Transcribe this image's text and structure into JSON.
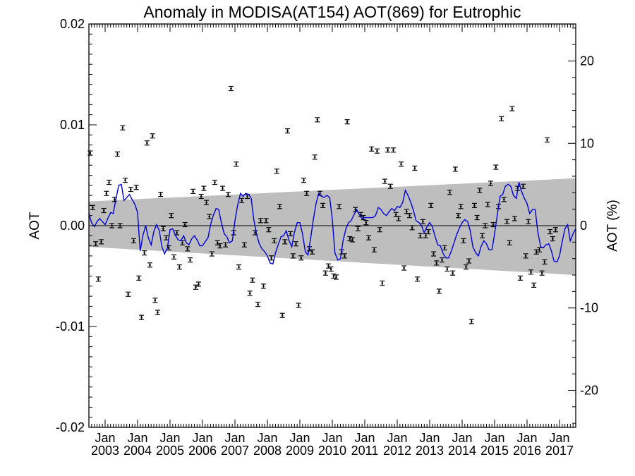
{
  "chart_data": {
    "type": "scatter",
    "title": "Anomaly in MODISA(AT154) AOT(869) for Eutrophic",
    "ylabel": "AOT",
    "y2label": "AOT (%)",
    "xlim": [
      2002.5,
      2017.5
    ],
    "ylim": [
      -0.02,
      0.02
    ],
    "y2lim": [
      -24.5,
      24.5
    ],
    "x_ticks": [
      {
        "label": "Jan",
        "year": "2003",
        "x": 2003
      },
      {
        "label": "Jan",
        "year": "2004",
        "x": 2004
      },
      {
        "label": "Jan",
        "year": "2005",
        "x": 2005
      },
      {
        "label": "Jan",
        "year": "2006",
        "x": 2006
      },
      {
        "label": "Jan",
        "year": "2007",
        "x": 2007
      },
      {
        "label": "Jan",
        "year": "2008",
        "x": 2008
      },
      {
        "label": "Jan",
        "year": "2009",
        "x": 2009
      },
      {
        "label": "Jan",
        "year": "2010",
        "x": 2010
      },
      {
        "label": "Jan",
        "year": "2011",
        "x": 2011
      },
      {
        "label": "Jan",
        "year": "2012",
        "x": 2012
      },
      {
        "label": "Jan",
        "year": "2013",
        "x": 2013
      },
      {
        "label": "Jan",
        "year": "2014",
        "x": 2014
      },
      {
        "label": "Jan",
        "year": "2015",
        "x": 2015
      },
      {
        "label": "Jan",
        "year": "2016",
        "x": 2016
      },
      {
        "label": "Jan",
        "year": "2017",
        "x": 2017
      }
    ],
    "y_ticks": [
      {
        "value": 0.02,
        "label": "0.02"
      },
      {
        "value": 0.01,
        "label": "0.01"
      },
      {
        "value": 0.0,
        "label": "0.00"
      },
      {
        "value": -0.01,
        "label": "-0.01"
      },
      {
        "value": -0.02,
        "label": "-0.02"
      }
    ],
    "y2_ticks": [
      {
        "value": 20,
        "label": "20"
      },
      {
        "value": 10,
        "label": "10"
      },
      {
        "value": 0,
        "label": "0"
      },
      {
        "value": -10,
        "label": "-10"
      },
      {
        "value": -20,
        "label": "-20"
      }
    ],
    "colors": {
      "points": "#000000",
      "smoothed": "#0000dd",
      "band": "#bebebe",
      "zero_line": "#000000"
    },
    "uncertainty_band": {
      "x": [
        2002.5,
        2017.5
      ],
      "upper": [
        0.0024,
        0.0047
      ],
      "lower": [
        -0.0021,
        -0.0049
      ]
    },
    "monthly_anomaly": [
      {
        "x": 2002.54,
        "y": 0.0072
      },
      {
        "x": 2002.62,
        "y": 0.0018
      },
      {
        "x": 2002.71,
        "y": -0.0018
      },
      {
        "x": 2002.79,
        "y": -0.0053
      },
      {
        "x": 2002.88,
        "y": -0.0016
      },
      {
        "x": 2002.96,
        "y": 0.0015
      },
      {
        "x": 2003.04,
        "y": 0.0032
      },
      {
        "x": 2003.12,
        "y": 0.0043
      },
      {
        "x": 2003.21,
        "y": 0.0
      },
      {
        "x": 2003.29,
        "y": 0.0026
      },
      {
        "x": 2003.38,
        "y": 0.0071
      },
      {
        "x": 2003.46,
        "y": 0.0
      },
      {
        "x": 2003.54,
        "y": 0.0097
      },
      {
        "x": 2003.62,
        "y": 0.0045
      },
      {
        "x": 2003.71,
        "y": -0.0068
      },
      {
        "x": 2003.79,
        "y": 0.0036
      },
      {
        "x": 2003.88,
        "y": -0.0015
      },
      {
        "x": 2003.96,
        "y": 0.0038
      },
      {
        "x": 2004.04,
        "y": -0.0052
      },
      {
        "x": 2004.12,
        "y": -0.0091
      },
      {
        "x": 2004.21,
        "y": -0.0027
      },
      {
        "x": 2004.29,
        "y": 0.0082
      },
      {
        "x": 2004.38,
        "y": -0.0039
      },
      {
        "x": 2004.46,
        "y": 0.0089
      },
      {
        "x": 2004.54,
        "y": -0.0074
      },
      {
        "x": 2004.62,
        "y": -0.0086
      },
      {
        "x": 2004.71,
        "y": 0.0031
      },
      {
        "x": 2004.79,
        "y": -0.0003
      },
      {
        "x": 2004.88,
        "y": -0.0012
      },
      {
        "x": 2004.96,
        "y": -0.0022
      },
      {
        "x": 2005.04,
        "y": 0.001
      },
      {
        "x": 2005.12,
        "y": -0.0031
      },
      {
        "x": 2005.21,
        "y": -0.0007
      },
      {
        "x": 2005.29,
        "y": -0.0041
      },
      {
        "x": 2005.38,
        "y": -0.0017
      },
      {
        "x": 2005.46,
        "y": 0.0001
      },
      {
        "x": 2005.54,
        "y": -0.0023
      },
      {
        "x": 2005.62,
        "y": -0.0034
      },
      {
        "x": 2005.71,
        "y": 0.0034
      },
      {
        "x": 2005.79,
        "y": -0.0061
      },
      {
        "x": 2005.88,
        "y": -0.0058
      },
      {
        "x": 2005.96,
        "y": 0.0029
      },
      {
        "x": 2006.04,
        "y": 0.0037
      },
      {
        "x": 2006.12,
        "y": 0.0023
      },
      {
        "x": 2006.21,
        "y": 0.0009
      },
      {
        "x": 2006.29,
        "y": -0.0028
      },
      {
        "x": 2006.38,
        "y": 0.0043
      },
      {
        "x": 2006.46,
        "y": -0.0017
      },
      {
        "x": 2006.54,
        "y": -0.002
      },
      {
        "x": 2006.62,
        "y": 0.0037
      },
      {
        "x": 2006.71,
        "y": -0.0019
      },
      {
        "x": 2006.79,
        "y": 0.0031
      },
      {
        "x": 2006.88,
        "y": 0.0136
      },
      {
        "x": 2006.96,
        "y": -0.0007
      },
      {
        "x": 2007.04,
        "y": 0.0061
      },
      {
        "x": 2007.12,
        "y": -0.0041
      },
      {
        "x": 2007.21,
        "y": 0.0025
      },
      {
        "x": 2007.29,
        "y": -0.0019
      },
      {
        "x": 2007.38,
        "y": 0.0029
      },
      {
        "x": 2007.46,
        "y": -0.0067
      },
      {
        "x": 2007.54,
        "y": -0.0054
      },
      {
        "x": 2007.62,
        "y": -0.0007
      },
      {
        "x": 2007.71,
        "y": -0.0078
      },
      {
        "x": 2007.79,
        "y": 0.0005
      },
      {
        "x": 2007.88,
        "y": -0.006
      },
      {
        "x": 2007.96,
        "y": 0.0005
      },
      {
        "x": 2008.04,
        "y": -0.0004
      },
      {
        "x": 2008.12,
        "y": -0.0032
      },
      {
        "x": 2008.21,
        "y": -0.0015
      },
      {
        "x": 2008.29,
        "y": 0.0054
      },
      {
        "x": 2008.38,
        "y": 0.0019
      },
      {
        "x": 2008.46,
        "y": -0.0089
      },
      {
        "x": 2008.54,
        "y": -0.0016
      },
      {
        "x": 2008.62,
        "y": 0.0094
      },
      {
        "x": 2008.71,
        "y": -0.0008
      },
      {
        "x": 2008.79,
        "y": -0.003
      },
      {
        "x": 2008.88,
        "y": -0.0018
      },
      {
        "x": 2008.96,
        "y": -0.0079
      },
      {
        "x": 2009.04,
        "y": -0.0032
      },
      {
        "x": 2009.12,
        "y": 0.0045
      },
      {
        "x": 2009.21,
        "y": 0.0032
      },
      {
        "x": 2009.29,
        "y": -0.0023
      },
      {
        "x": 2009.38,
        "y": -0.0026
      },
      {
        "x": 2009.46,
        "y": 0.0068
      },
      {
        "x": 2009.54,
        "y": 0.0105
      },
      {
        "x": 2009.62,
        "y": 0.0032
      },
      {
        "x": 2009.71,
        "y": 0.002
      },
      {
        "x": 2009.79,
        "y": -0.0047
      },
      {
        "x": 2009.88,
        "y": -0.004
      },
      {
        "x": 2009.96,
        "y": -0.0043
      },
      {
        "x": 2010.04,
        "y": -0.005
      },
      {
        "x": 2010.12,
        "y": -0.0051
      },
      {
        "x": 2010.21,
        "y": 0.0019
      },
      {
        "x": 2010.29,
        "y": -0.0026
      },
      {
        "x": 2010.38,
        "y": -0.003
      },
      {
        "x": 2010.46,
        "y": 0.0103
      },
      {
        "x": 2010.54,
        "y": -0.0013
      },
      {
        "x": 2010.62,
        "y": -0.0014
      },
      {
        "x": 2010.71,
        "y": 0.0016
      },
      {
        "x": 2010.79,
        "y": -0.0003
      },
      {
        "x": 2010.88,
        "y": 0.0011
      },
      {
        "x": 2010.96,
        "y": 0.0008
      },
      {
        "x": 2011.04,
        "y": 0.0003
      },
      {
        "x": 2011.12,
        "y": -0.0012
      },
      {
        "x": 2011.21,
        "y": 0.0076
      },
      {
        "x": 2011.29,
        "y": -0.0024
      },
      {
        "x": 2011.38,
        "y": 0.0074
      },
      {
        "x": 2011.46,
        "y": -0.0004
      },
      {
        "x": 2011.54,
        "y": -0.0057
      },
      {
        "x": 2011.62,
        "y": 0.0044
      },
      {
        "x": 2011.71,
        "y": 0.0075
      },
      {
        "x": 2011.79,
        "y": 0.0039
      },
      {
        "x": 2011.88,
        "y": 0.0075
      },
      {
        "x": 2011.96,
        "y": 0.0011
      },
      {
        "x": 2012.04,
        "y": 0.0007
      },
      {
        "x": 2012.12,
        "y": 0.0061
      },
      {
        "x": 2012.21,
        "y": -0.0042
      },
      {
        "x": 2012.29,
        "y": 0.0014
      },
      {
        "x": 2012.38,
        "y": 0.001
      },
      {
        "x": 2012.46,
        "y": -0.0002
      },
      {
        "x": 2012.54,
        "y": 0.0057
      },
      {
        "x": 2012.62,
        "y": -0.0053
      },
      {
        "x": 2012.71,
        "y": -0.001
      },
      {
        "x": 2012.79,
        "y": 0.0004
      },
      {
        "x": 2012.88,
        "y": -0.001
      },
      {
        "x": 2012.96,
        "y": -0.0006
      },
      {
        "x": 2013.04,
        "y": 0.002
      },
      {
        "x": 2013.12,
        "y": -0.0028
      },
      {
        "x": 2013.21,
        "y": -0.0037
      },
      {
        "x": 2013.29,
        "y": -0.0065
      },
      {
        "x": 2013.38,
        "y": -0.0034
      },
      {
        "x": 2013.46,
        "y": -0.0022
      },
      {
        "x": 2013.54,
        "y": -0.0043
      },
      {
        "x": 2013.62,
        "y": 0.0033
      },
      {
        "x": 2013.71,
        "y": -0.0047
      },
      {
        "x": 2013.79,
        "y": 0.0056
      },
      {
        "x": 2013.88,
        "y": 0.001
      },
      {
        "x": 2013.96,
        "y": 0.0019
      },
      {
        "x": 2014.04,
        "y": -0.0015
      },
      {
        "x": 2014.12,
        "y": -0.0041
      },
      {
        "x": 2014.21,
        "y": -0.0035
      },
      {
        "x": 2014.29,
        "y": -0.0095
      },
      {
        "x": 2014.38,
        "y": 0.002
      },
      {
        "x": 2014.46,
        "y": 0.0008
      },
      {
        "x": 2014.54,
        "y": 0.0035
      },
      {
        "x": 2014.62,
        "y": -0.001
      },
      {
        "x": 2014.71,
        "y": 0.0
      },
      {
        "x": 2014.79,
        "y": 0.0021
      },
      {
        "x": 2014.88,
        "y": 0.0042
      },
      {
        "x": 2014.96,
        "y": 0.0001
      },
      {
        "x": 2015.04,
        "y": 0.0058
      },
      {
        "x": 2015.12,
        "y": 0.0019
      },
      {
        "x": 2015.21,
        "y": 0.0106
      },
      {
        "x": 2015.29,
        "y": 0.0026
      },
      {
        "x": 2015.38,
        "y": 0.0004
      },
      {
        "x": 2015.46,
        "y": -0.0017
      },
      {
        "x": 2015.54,
        "y": 0.0116
      },
      {
        "x": 2015.62,
        "y": 0.0007
      },
      {
        "x": 2015.71,
        "y": 0.0037
      },
      {
        "x": 2015.79,
        "y": -0.0052
      },
      {
        "x": 2015.88,
        "y": 0.0039
      },
      {
        "x": 2015.96,
        "y": -0.003
      },
      {
        "x": 2016.04,
        "y": 0.0004
      },
      {
        "x": 2016.12,
        "y": -0.0046
      },
      {
        "x": 2016.21,
        "y": -0.0059
      },
      {
        "x": 2016.29,
        "y": -0.0026
      },
      {
        "x": 2016.38,
        "y": -0.0024
      },
      {
        "x": 2016.46,
        "y": -0.0047
      },
      {
        "x": 2016.54,
        "y": -0.0036
      },
      {
        "x": 2016.62,
        "y": 0.0085
      },
      {
        "x": 2016.71,
        "y": -0.0006
      },
      {
        "x": 2016.79,
        "y": -0.0013
      },
      {
        "x": 2016.88,
        "y": -0.0004
      }
    ],
    "smoothed_anomaly": {
      "x": [
        2002.5,
        2002.58,
        2002.67,
        2002.75,
        2002.83,
        2002.92,
        2003.0,
        2003.08,
        2003.17,
        2003.25,
        2003.33,
        2003.42,
        2003.5,
        2003.58,
        2003.67,
        2003.75,
        2003.83,
        2003.92,
        2004.0,
        2004.08,
        2004.17,
        2004.25,
        2004.33,
        2004.42,
        2004.5,
        2004.58,
        2004.67,
        2004.75,
        2004.83,
        2004.92,
        2005.0,
        2005.08,
        2005.17,
        2005.25,
        2005.33,
        2005.42,
        2005.5,
        2005.58,
        2005.67,
        2005.75,
        2005.83,
        2005.92,
        2006.0,
        2006.08,
        2006.17,
        2006.25,
        2006.33,
        2006.42,
        2006.5,
        2006.58,
        2006.67,
        2006.75,
        2006.83,
        2006.92,
        2007.0,
        2007.08,
        2007.17,
        2007.25,
        2007.33,
        2007.42,
        2007.5,
        2007.58,
        2007.67,
        2007.75,
        2007.83,
        2007.92,
        2008.0,
        2008.08,
        2008.17,
        2008.25,
        2008.33,
        2008.42,
        2008.5,
        2008.58,
        2008.67,
        2008.75,
        2008.83,
        2008.92,
        2009.0,
        2009.08,
        2009.17,
        2009.25,
        2009.33,
        2009.42,
        2009.5,
        2009.58,
        2009.67,
        2009.75,
        2009.83,
        2009.92,
        2010.0,
        2010.08,
        2010.17,
        2010.25,
        2010.33,
        2010.42,
        2010.5,
        2010.58,
        2010.67,
        2010.75,
        2010.83,
        2010.92,
        2011.0,
        2011.08,
        2011.17,
        2011.25,
        2011.33,
        2011.42,
        2011.5,
        2011.58,
        2011.67,
        2011.75,
        2011.83,
        2011.92,
        2012.0,
        2012.08,
        2012.17,
        2012.25,
        2012.33,
        2012.42,
        2012.5,
        2012.58,
        2012.67,
        2012.75,
        2012.83,
        2012.92,
        2013.0,
        2013.08,
        2013.17,
        2013.25,
        2013.33,
        2013.42,
        2013.5,
        2013.58,
        2013.67,
        2013.75,
        2013.83,
        2013.92,
        2014.0,
        2014.08,
        2014.17,
        2014.25,
        2014.33,
        2014.42,
        2014.5,
        2014.58,
        2014.67,
        2014.75,
        2014.83,
        2014.92,
        2015.0,
        2015.08,
        2015.17,
        2015.25,
        2015.33,
        2015.42,
        2015.5,
        2015.58,
        2015.67,
        2015.75,
        2015.83,
        2015.92,
        2016.0,
        2016.08,
        2016.17,
        2016.25,
        2016.33,
        2016.42,
        2016.5,
        2016.58,
        2016.67,
        2016.75,
        2016.83,
        2016.92,
        2017.0,
        2017.08,
        2017.17,
        2017.25,
        2017.33,
        2017.42,
        2017.5
      ],
      "y": [
        0.0012,
        0.0003,
        -0.0001,
        0.0004,
        0.0007,
        0.0004,
        0.0001,
        0.0007,
        0.0013,
        0.0012,
        0.0026,
        0.004,
        0.0041,
        0.0025,
        0.0028,
        0.0031,
        0.0026,
        0.0021,
        0.0013,
        -0.0025,
        -0.0009,
        0.0,
        -0.0012,
        -0.0019,
        -0.0006,
        0.0001,
        -0.0005,
        -0.0021,
        -0.0028,
        -0.0022,
        -0.0004,
        -0.0003,
        -0.001,
        -0.0014,
        -0.0015,
        -0.001,
        -0.0017,
        -0.0019,
        -0.0013,
        -0.001,
        -0.0014,
        -0.002,
        -0.002,
        -0.0016,
        -0.0012,
        0.0001,
        0.001,
        0.0017,
        0.0016,
        0.0003,
        -0.0008,
        -0.0011,
        -0.0017,
        -0.0015,
        0.0005,
        0.002,
        0.0032,
        0.0029,
        0.0032,
        0.0031,
        0.0027,
        0.0006,
        -0.0009,
        -0.0018,
        -0.0023,
        -0.0026,
        -0.003,
        -0.0037,
        -0.0038,
        -0.0027,
        -0.0019,
        -0.0011,
        -0.001,
        -0.0005,
        -0.0015,
        -0.0021,
        -0.0007,
        0.0003,
        0.0003,
        -0.0008,
        -0.0026,
        -0.0029,
        -0.0013,
        0.0007,
        0.0022,
        0.0032,
        0.0029,
        0.0028,
        0.003,
        0.0028,
        0.0006,
        -0.0027,
        -0.0034,
        -0.0033,
        -0.0015,
        -0.0003,
        0.0003,
        0.0005,
        0.0011,
        0.0016,
        0.0011,
        0.0007,
        0.0008,
        0.0008,
        0.0008,
        0.0008,
        0.001,
        0.0018,
        0.0016,
        0.0012,
        0.001,
        0.0014,
        0.0017,
        0.0015,
        0.0019,
        0.0018,
        0.0023,
        0.0035,
        0.003,
        0.0023,
        0.0015,
        0.0005,
        0.0003,
        0.0,
        -0.0007,
        -0.0001,
        0.0003,
        -0.0001,
        -0.0011,
        -0.0019,
        -0.002,
        -0.0028,
        -0.0032,
        -0.0032,
        -0.0025,
        -0.0017,
        -0.0009,
        -0.0002,
        0.0003,
        0.0006,
        0.0004,
        -0.0005,
        -0.0021,
        -0.0027,
        -0.003,
        -0.0021,
        -0.0015,
        -0.0018,
        -0.0024,
        -0.0024,
        -0.0008,
        0.001,
        0.0029,
        0.0031,
        0.0039,
        0.0041,
        0.0039,
        0.003,
        0.0027,
        0.0043,
        0.0034,
        0.0027,
        0.0022,
        0.0012,
        0.0016,
        0.0016,
        -0.0006,
        -0.0021,
        -0.0022,
        -0.0019,
        -0.0018,
        -0.0025,
        -0.0035,
        -0.0036,
        -0.003,
        -0.0016,
        -0.0003,
        0.0001,
        -0.0015,
        -0.0008,
        -0.0003
      ]
    }
  }
}
